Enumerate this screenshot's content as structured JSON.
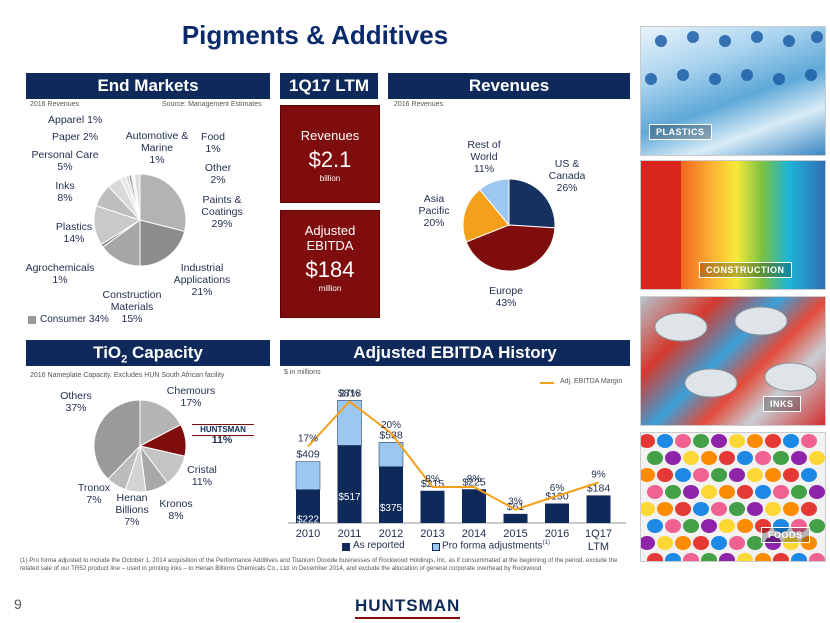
{
  "title": "Pigments & Additives",
  "end_markets": {
    "header": "End Markets",
    "note_left": "2016 Revenues",
    "note_right": "Source: Management Estimates",
    "consumer_legend": "Consumer 34%",
    "slices": [
      {
        "label": "Paints & Coatings 29%",
        "value": 29,
        "color": "#b3b3b3"
      },
      {
        "label": "Industrial Applications 21%",
        "value": 21,
        "color": "#8c8c8c"
      },
      {
        "label": "Construction Materials 15%",
        "value": 15,
        "color": "#a6a6a6"
      },
      {
        "label": "Agrochemicals 1%",
        "value": 1,
        "color": "#7a7a7a"
      },
      {
        "label": "Plastics 14%",
        "value": 14,
        "color": "#c9c9c9"
      },
      {
        "label": "Inks 8%",
        "value": 8,
        "color": "#bdbdbd"
      },
      {
        "label": "Personal Care 5%",
        "value": 5,
        "color": "#d9d9d9"
      },
      {
        "label": "Paper 2%",
        "value": 2,
        "color": "#e6e6e6"
      },
      {
        "label": "Apparel 1%",
        "value": 1,
        "color": "#d0d0d0"
      },
      {
        "label": "Automotive & Marine 1%",
        "value": 1,
        "color": "#9e9e9e"
      },
      {
        "label": "Food 1%",
        "value": 1,
        "color": "#f0f0f0"
      },
      {
        "label": "Other 2%",
        "value": 2,
        "color": "#dcdcdc"
      }
    ],
    "labels": {
      "apparel": "Apparel 1%",
      "paper": "Paper 2%",
      "personal1": "Personal Care",
      "personal2": "5%",
      "inks1": "Inks",
      "inks2": "8%",
      "plastics1": "Plastics",
      "plastics2": "14%",
      "agro1": "Agrochemicals",
      "agro2": "1%",
      "constr1": "Construction",
      "constr2": "Materials",
      "constr3": "15%",
      "industrial1": "Industrial",
      "industrial2": "Applications",
      "industrial3": "21%",
      "paints1": "Paints &",
      "paints2": "Coatings",
      "paints3": "29%",
      "other1": "Other",
      "other2": "2%",
      "food1": "Food",
      "food2": "1%",
      "auto1": "Automotive &",
      "auto2": "Marine",
      "auto3": "1%"
    }
  },
  "ltm": {
    "header": "1Q17 LTM",
    "revenues_title": "Revenues",
    "revenues_value": "$2.1",
    "revenues_unit": "billion",
    "ebitda_title1": "Adjusted",
    "ebitda_title2": "EBITDA",
    "ebitda_value": "$184",
    "ebitda_unit": "million"
  },
  "revenues": {
    "header": "Revenues",
    "note": "2016 Revenues",
    "slices": [
      {
        "label": "US & Canada 26%",
        "value": 26,
        "color": "#15315f"
      },
      {
        "label": "Europe 43%",
        "value": 43,
        "color": "#7f0d0d"
      },
      {
        "label": "Asia Pacific 20%",
        "value": 20,
        "color": "#f5a01a"
      },
      {
        "label": "Rest of World 11%",
        "value": 11,
        "color": "#9cc7ee"
      }
    ],
    "labels": {
      "us1": "US &",
      "us2": "Canada",
      "us3": "26%",
      "eu1": "Europe",
      "eu2": "43%",
      "ap1": "Asia",
      "ap2": "Pacific",
      "ap3": "20%",
      "row1": "Rest of",
      "row2": "World",
      "row3": "11%"
    }
  },
  "tio2": {
    "header": "TiO",
    "header_sub": "2",
    "header_tail": " Capacity",
    "note": "2016 Nameplate Capacity. Excludes HUN South African facility",
    "slices": [
      {
        "label": "Chemours 17%",
        "value": 17,
        "color": "#b5b5b5"
      },
      {
        "label": "Huntsman 11%",
        "value": 11,
        "color": "#7f0d0d"
      },
      {
        "label": "Cristal 11%",
        "value": 11,
        "color": "#c4c4c4"
      },
      {
        "label": "Kronos 8%",
        "value": 8,
        "color": "#a8a8a8"
      },
      {
        "label": "Henan Billions 7%",
        "value": 7,
        "color": "#d3d3d3"
      },
      {
        "label": "Tronox 7%",
        "value": 7,
        "color": "#bcbcbc"
      },
      {
        "label": "Others 37%",
        "value": 37,
        "color": "#9a9a9a"
      }
    ],
    "labels": {
      "chem1": "Chemours",
      "chem2": "17%",
      "hun_logo": "HUNTSMAN",
      "hun2": "11%",
      "cris1": "Cristal",
      "cris2": "11%",
      "kron1": "Kronos",
      "kron2": "8%",
      "henan1": "Henan",
      "henan2": "Billions",
      "henan3": "7%",
      "tron1": "Tronox",
      "tron2": "7%",
      "oth1": "Others",
      "oth2": "37%"
    }
  },
  "ebitda_history": {
    "header": "Adjusted EBITDA History",
    "unit_note": "$ in millions",
    "margin_legend": "Adj. EBITDA Margin",
    "legend_reported": "As reported",
    "legend_proforma": "Pro forma adjustments",
    "legend_proforma_sup": "(1)",
    "chart_data": {
      "type": "bar",
      "categories": [
        "2010",
        "2011",
        "2012",
        "2013",
        "2014",
        "2015",
        "2016",
        "1Q17 LTM"
      ],
      "series": [
        {
          "name": "As reported",
          "values": [
            222,
            517,
            375,
            215,
            225,
            61,
            130,
            184
          ]
        },
        {
          "name": "Pro forma adjustments",
          "values": [
            187,
            301,
            163,
            0,
            0,
            0,
            0,
            0
          ]
        },
        {
          "name": "Adj. EBITDA Margin",
          "values": [
            17,
            27,
            20,
            8,
            8,
            3,
            6,
            9
          ]
        }
      ],
      "totals": [
        "$409",
        "$818",
        "$538",
        "$215",
        "$225",
        "$61",
        "$130",
        "$184"
      ],
      "reported_labels": [
        "$222",
        "$517",
        "$375",
        "",
        "",
        "",
        "",
        ""
      ],
      "margin_labels": [
        "17%",
        "27%",
        "20%",
        "8%",
        "8%",
        "3%",
        "6%",
        "9%"
      ],
      "ylim": [
        0,
        900
      ]
    }
  },
  "photos": [
    {
      "tag": "PLASTICS"
    },
    {
      "tag": "CONSTRUCTION"
    },
    {
      "tag": "INKS"
    },
    {
      "tag": "FOODS"
    }
  ],
  "footnote": "(1) Pro forma adjusted to include the October 1, 2014 acquisition of the Performance Additives and Titanium Dioxide businesses of Rockwood Holdings, Inc. as if consummated at the beginning of the period, exclude the related sale of our TR52 product line – used in printing inks – to Henan Billions Chemicals Co., Ltd. in December 2014, and exclude the allocation of general corporate overhead by Rockwood",
  "page_number": "9",
  "logo": "HUNTSMAN",
  "colors": {
    "navy": "#0f2a5a",
    "maroon": "#7f0d0d",
    "orange": "#f5a01a",
    "lightblue": "#9cc7ee"
  }
}
